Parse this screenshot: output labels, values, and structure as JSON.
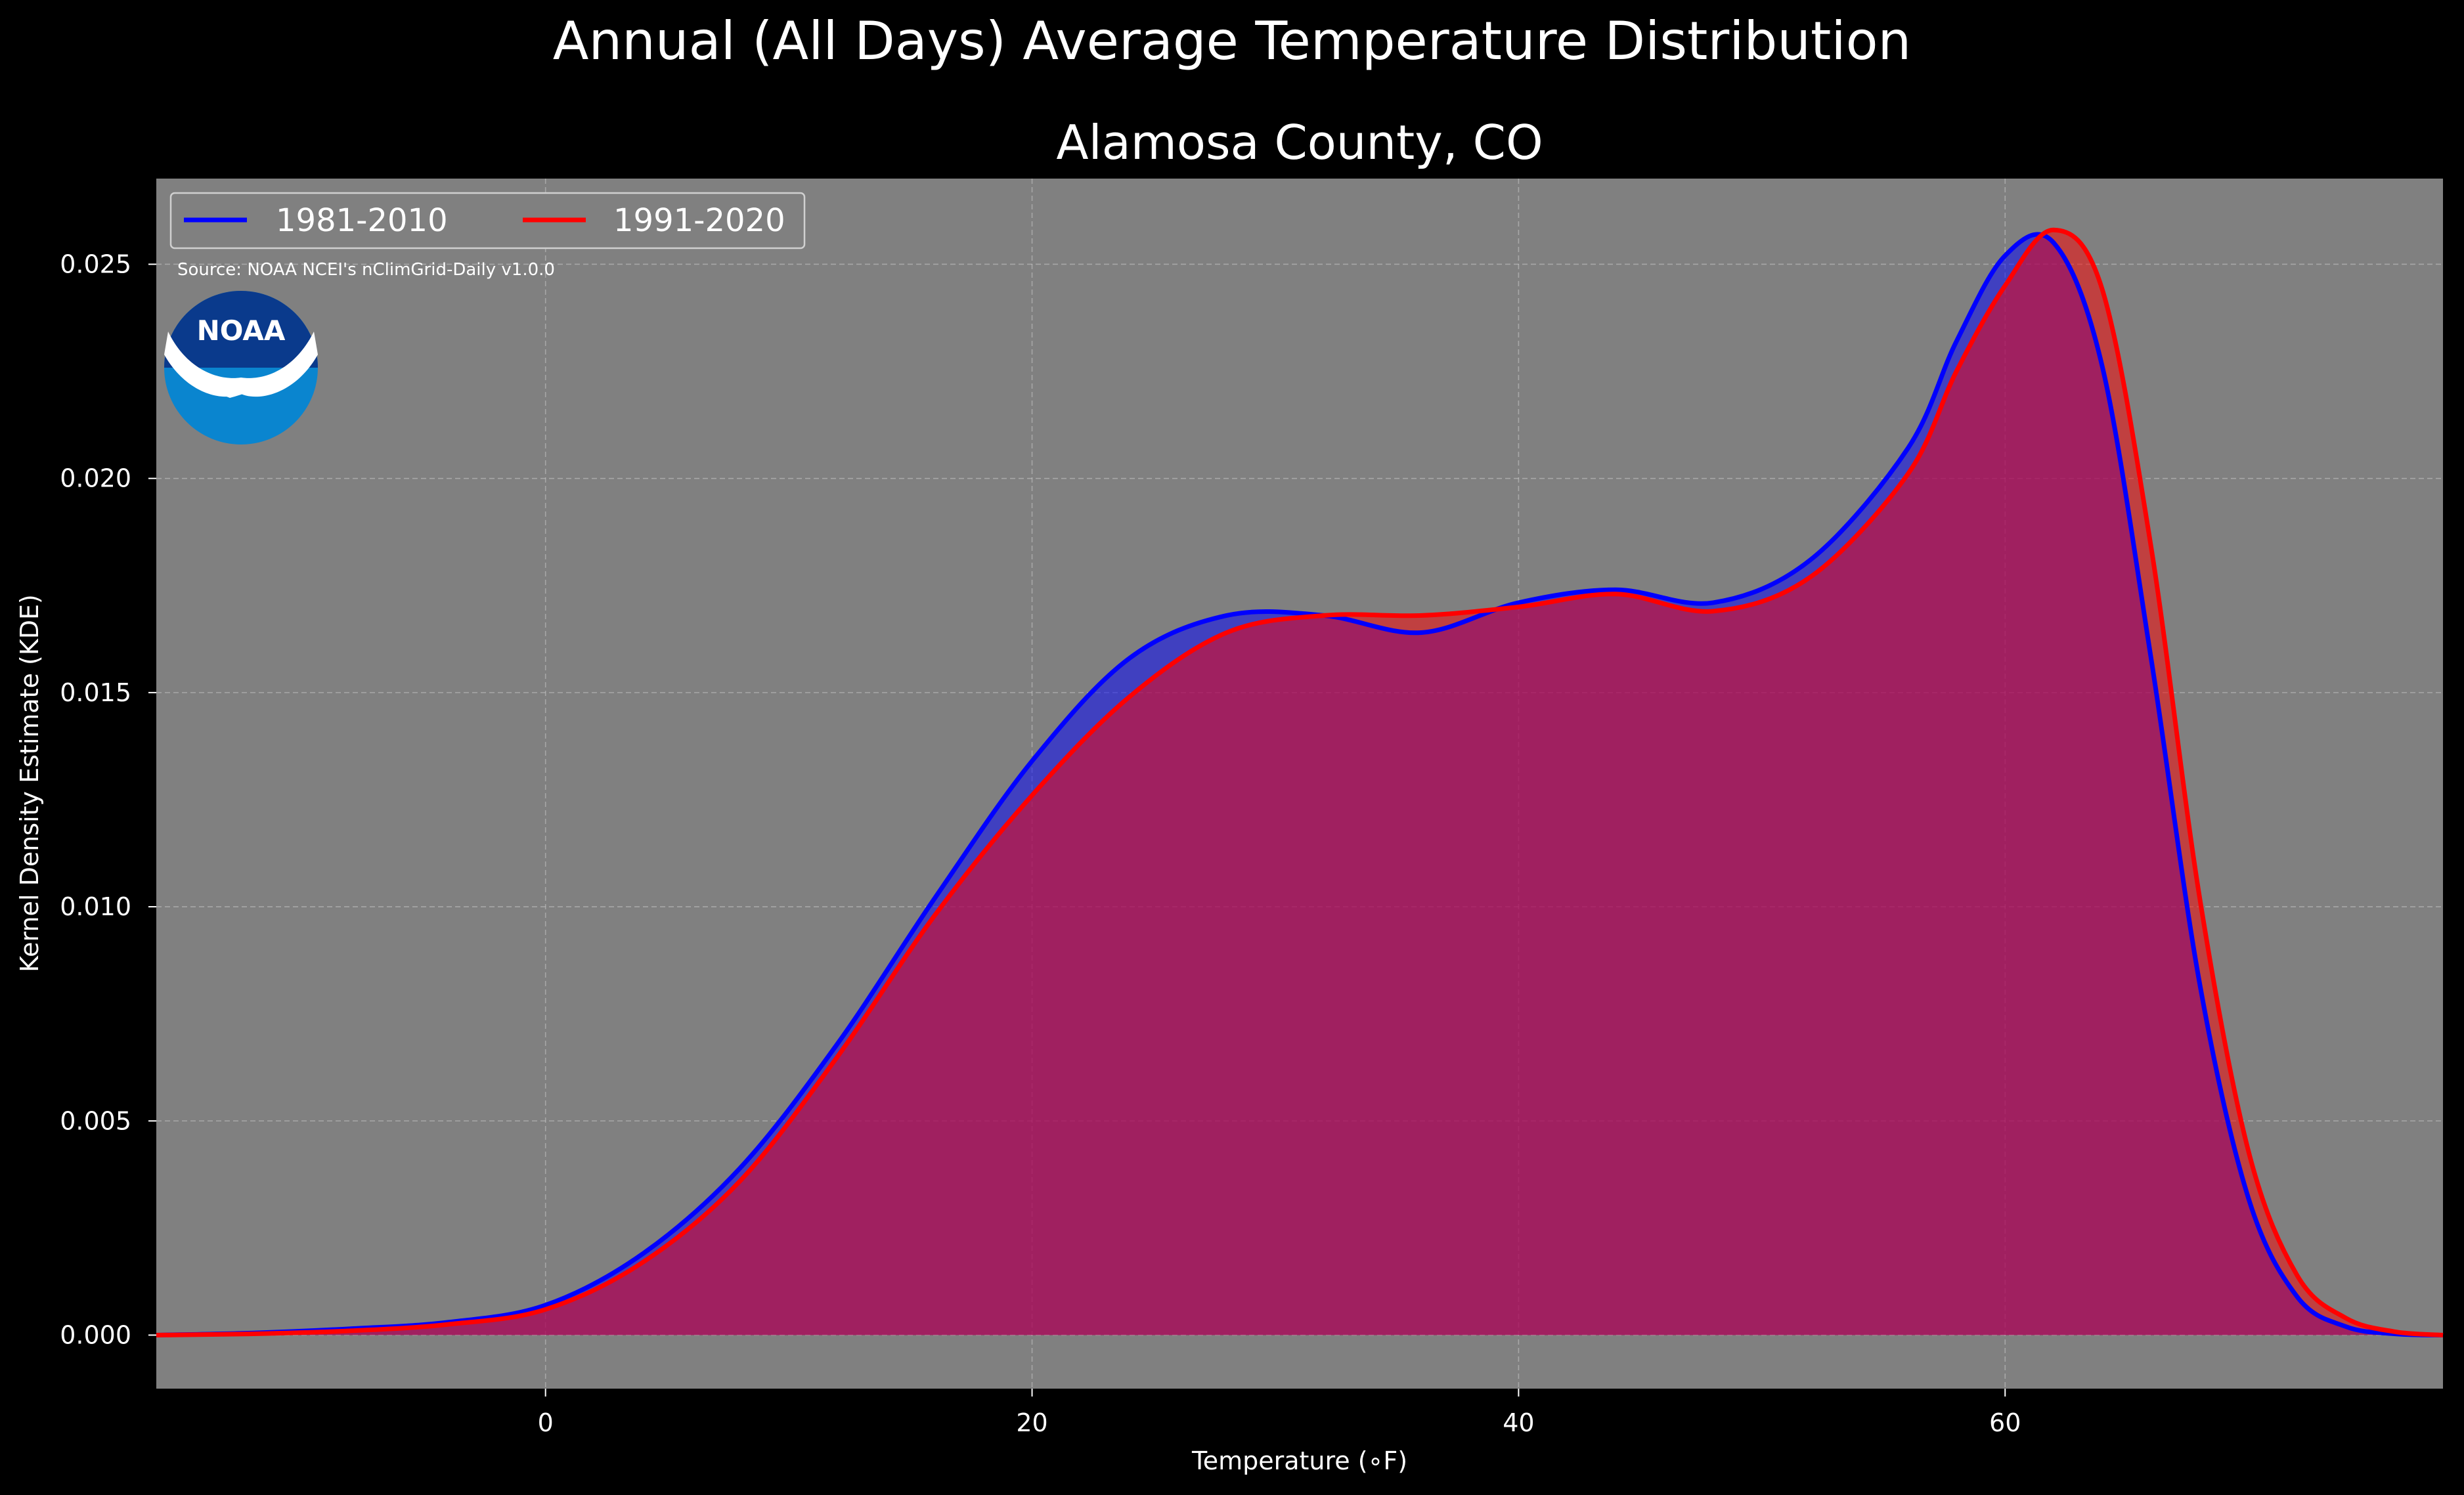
{
  "figure": {
    "suptitle": "Annual (All Days) Average Temperature Distribution",
    "title": "Alamosa County, CO",
    "source": "Source: NOAA NCEI's nClimGrid-Daily v1.0.0",
    "logo_text": "NOAA"
  },
  "colors": {
    "figure_bg": "#000000",
    "plot_bg": "#808080",
    "series_1981": "#0000ff",
    "series_1991": "#ff0000",
    "logo_dark": "#0a3a8c",
    "logo_light": "#0a85cf"
  },
  "chart_data": {
    "type": "area",
    "title": "Alamosa County, CO",
    "xlabel": "Temperature (∘F)",
    "ylabel": "Kernel Density Estimate (KDE)",
    "xlim": [
      -16,
      78
    ],
    "ylim": [
      -0.00125,
      0.027
    ],
    "xticks": [
      0,
      20,
      40,
      60
    ],
    "xtick_labels": [
      "0",
      "20",
      "40",
      "60"
    ],
    "yticks": [
      0.0,
      0.005,
      0.01,
      0.015,
      0.02,
      0.025
    ],
    "ytick_labels": [
      "0.000",
      "0.005",
      "0.010",
      "0.015",
      "0.020",
      "0.025"
    ],
    "grid": true,
    "legend_position": "upper left",
    "x": [
      -16,
      -12,
      -8,
      -4,
      0,
      4,
      8,
      12,
      16,
      20,
      24,
      28,
      32,
      36,
      40,
      44,
      48,
      52,
      56,
      58,
      60,
      62,
      64,
      66,
      68,
      70,
      72,
      74,
      76,
      78
    ],
    "series": [
      {
        "name": "1981-2010",
        "color": "#0000ff",
        "values": [
          0.0,
          5e-05,
          0.00015,
          0.0003,
          0.0007,
          0.0019,
          0.0039,
          0.0068,
          0.0102,
          0.0134,
          0.0158,
          0.0168,
          0.0168,
          0.0164,
          0.0171,
          0.0174,
          0.0171,
          0.0181,
          0.0207,
          0.0232,
          0.0252,
          0.0255,
          0.0226,
          0.0158,
          0.0082,
          0.0032,
          0.0009,
          0.0002,
          3e-05,
          0.0
        ]
      },
      {
        "name": "1991-2020",
        "color": "#ff0000",
        "values": [
          0.0,
          3e-05,
          0.0001,
          0.00025,
          0.0006,
          0.0017,
          0.0036,
          0.0065,
          0.0098,
          0.0126,
          0.0149,
          0.0164,
          0.0168,
          0.0168,
          0.017,
          0.0173,
          0.0169,
          0.0177,
          0.0201,
          0.0225,
          0.0245,
          0.0258,
          0.0244,
          0.0184,
          0.0102,
          0.0043,
          0.0014,
          0.0004,
          8e-05,
          0.0
        ]
      }
    ]
  }
}
